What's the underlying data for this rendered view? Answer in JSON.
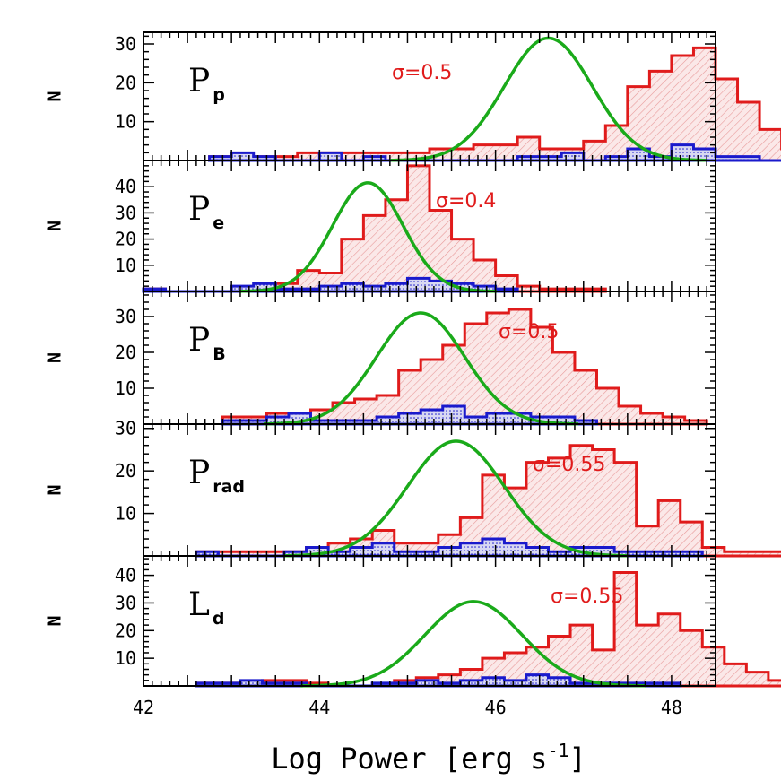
{
  "chart_data": {
    "type": "histogram",
    "xlabel": "Log Power [erg s",
    "xlabel_sup": "-1",
    "xlabel_close": "]",
    "xlim": [
      42,
      48.5
    ],
    "xticks": [
      42,
      44,
      46,
      48
    ],
    "bin_width": 0.25,
    "colors": {
      "sample_all": "#e01b1b",
      "sample_sub": "#1a1acc",
      "fit": "#1aaa1a",
      "annotation": "#e01b1b"
    },
    "panels": [
      {
        "id": "pp",
        "name": "P",
        "sub": "p",
        "ylabel": "N",
        "ylim": [
          0,
          33
        ],
        "yticks": [
          10,
          20,
          30
        ],
        "annotation": "σ=0.5",
        "fit": {
          "mu": 46.6,
          "sigma": 0.5,
          "amp": 31.5
        },
        "red_start": 42.75,
        "red": [
          1,
          1,
          1,
          1,
          2,
          2,
          2,
          2,
          2,
          2,
          3,
          3,
          4,
          4,
          6,
          3,
          3,
          5,
          9,
          19,
          23,
          27,
          29,
          21,
          15,
          8,
          3,
          1,
          1,
          1
        ],
        "blue_start": 42.75,
        "blue": [
          1,
          2,
          1,
          0,
          0,
          2,
          0,
          1,
          0,
          0,
          0,
          0,
          0,
          0,
          1,
          1,
          2,
          0,
          1,
          3,
          1,
          4,
          3,
          1,
          1,
          0
        ]
      },
      {
        "id": "pe",
        "name": "P",
        "sub": "e",
        "ylabel": "N",
        "ylim": [
          0,
          50
        ],
        "yticks": [
          10,
          20,
          30,
          40
        ],
        "annotation": "σ=0.4",
        "fit": {
          "mu": 44.55,
          "sigma": 0.4,
          "amp": 41.5
        },
        "red_start": 42.0,
        "red": [
          1,
          0,
          0,
          0,
          1,
          2,
          3,
          8,
          7,
          20,
          29,
          35,
          48,
          31,
          20,
          12,
          6,
          2,
          1,
          1,
          1
        ],
        "blue_start": 42.0,
        "blue": [
          1,
          0,
          0,
          0,
          2,
          3,
          1,
          1,
          2,
          3,
          2,
          3,
          5,
          4,
          3,
          2,
          1
        ]
      },
      {
        "id": "pb",
        "name": "P",
        "sub": "B",
        "ylabel": "N",
        "ylim": [
          0,
          37
        ],
        "yticks": [
          10,
          20,
          30
        ],
        "annotation": "σ=0.5",
        "fit": {
          "mu": 45.15,
          "sigma": 0.5,
          "amp": 31
        },
        "red_start": 42.9,
        "red": [
          2,
          2,
          3,
          3,
          4,
          6,
          7,
          8,
          15,
          18,
          22,
          28,
          31,
          32,
          27,
          20,
          15,
          10,
          5,
          3,
          2,
          1
        ],
        "blue_start": 42.9,
        "blue": [
          1,
          1,
          2,
          3,
          1,
          1,
          1,
          2,
          3,
          4,
          5,
          2,
          3,
          3,
          2,
          2,
          1
        ]
      },
      {
        "id": "prad",
        "name": "P",
        "sub": "rad",
        "ylabel": "N",
        "ylim": [
          0,
          31
        ],
        "yticks": [
          10,
          20,
          30
        ],
        "annotation": "σ=0.55",
        "fit": {
          "mu": 45.55,
          "sigma": 0.55,
          "amp": 27
        },
        "red_start": 42.6,
        "red": [
          1,
          1,
          1,
          1,
          1,
          2,
          3,
          4,
          6,
          3,
          3,
          5,
          9,
          19,
          16,
          22,
          23,
          26,
          25,
          22,
          7,
          13,
          8,
          2,
          1,
          1,
          1,
          1,
          1
        ],
        "blue_start": 42.6,
        "blue": [
          1,
          0,
          0,
          0,
          1,
          2,
          1,
          2,
          3,
          1,
          1,
          2,
          3,
          4,
          3,
          2,
          1,
          2,
          2,
          1,
          1,
          1,
          1
        ]
      },
      {
        "id": "ld",
        "name": "L",
        "sub": "d",
        "ylabel": "N",
        "ylim": [
          0,
          47
        ],
        "yticks": [
          10,
          20,
          30,
          40
        ],
        "annotation": "σ=0.55",
        "fit": {
          "mu": 45.75,
          "sigma": 0.55,
          "amp": 30.5
        },
        "red_start": 42.6,
        "red": [
          1,
          1,
          1,
          2,
          2,
          1,
          0,
          0,
          0,
          2,
          3,
          4,
          6,
          10,
          12,
          14,
          18,
          22,
          13,
          41,
          22,
          26,
          20,
          14,
          8,
          5,
          2,
          1,
          1
        ],
        "blue_start": 42.6,
        "blue": [
          1,
          1,
          2,
          1,
          1,
          0,
          0,
          0,
          1,
          1,
          2,
          1,
          2,
          3,
          2,
          4,
          3,
          1,
          1,
          1,
          1,
          1
        ]
      }
    ]
  }
}
